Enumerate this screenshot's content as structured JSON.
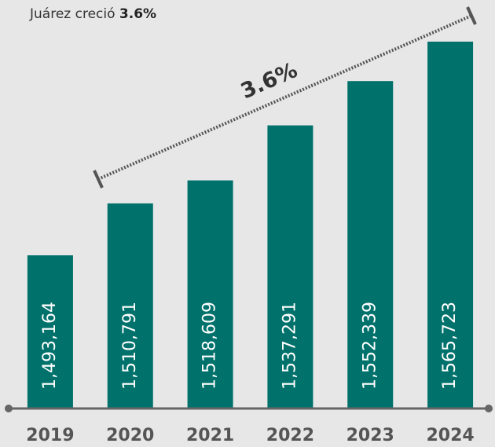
{
  "chart_data": {
    "type": "bar",
    "title": "Juárez creció",
    "title_highlight": "3.6%",
    "annotation": "3.6%",
    "categories": [
      "2019",
      "2020",
      "2021",
      "2022",
      "2023",
      "2024"
    ],
    "values": [
      1493164,
      1510791,
      1518609,
      1537291,
      1552339,
      1565723
    ],
    "value_labels": [
      "1,493,164",
      "1,510,791",
      "1,518,609",
      "1,537,291",
      "1,552,339",
      "1,565,723"
    ],
    "color": "#00716b",
    "ylim": [
      1441146,
      1570000
    ]
  }
}
